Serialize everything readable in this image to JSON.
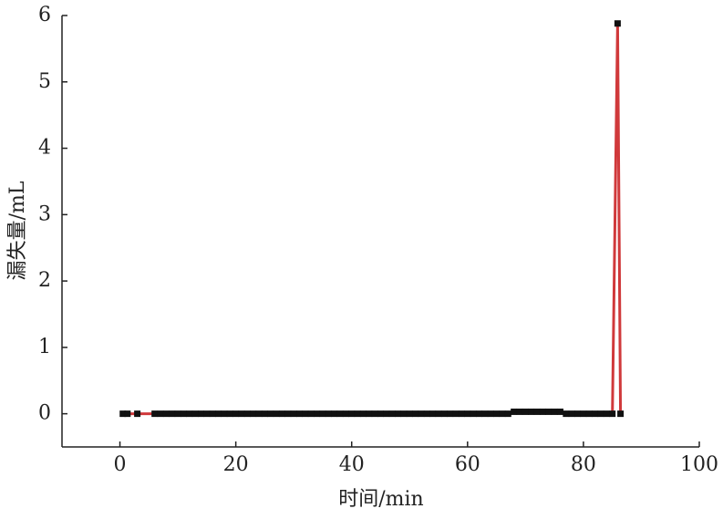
{
  "chart_data": {
    "type": "line",
    "x_label": "时间/min",
    "y_label": "漏失量/mL",
    "x": [
      0.5,
      1.3,
      3,
      6,
      7,
      8,
      9,
      10,
      11,
      12,
      13,
      14,
      15,
      16,
      17,
      18,
      19,
      20,
      21,
      22,
      23,
      24,
      25,
      26,
      27,
      28,
      29,
      30,
      31,
      32,
      33,
      34,
      35,
      36,
      37,
      38,
      39,
      40,
      41,
      42,
      43,
      44,
      45,
      46,
      47,
      48,
      49,
      50,
      51,
      52,
      53,
      54,
      55,
      56,
      57,
      58,
      59,
      60,
      61,
      62,
      63,
      64,
      65,
      66,
      67,
      68,
      69,
      70,
      71,
      72,
      73,
      74,
      75,
      76,
      77,
      78,
      79,
      80,
      81,
      82,
      83,
      84,
      85,
      85.9,
      86.4
    ],
    "values": [
      0,
      0,
      0,
      0,
      0,
      0,
      0,
      0,
      0,
      0,
      0,
      0,
      0,
      0,
      0,
      0,
      0,
      0,
      0,
      0,
      0,
      0,
      0,
      0,
      0,
      0,
      0,
      0,
      0,
      0,
      0,
      0,
      0,
      0,
      0,
      0,
      0,
      0,
      0,
      0,
      0,
      0,
      0,
      0,
      0,
      0,
      0,
      0,
      0,
      0,
      0,
      0,
      0,
      0,
      0,
      0,
      0,
      0,
      0,
      0,
      0,
      0,
      0,
      0,
      0,
      0.03,
      0.03,
      0.03,
      0.03,
      0.03,
      0.03,
      0.03,
      0.03,
      0.03,
      0,
      0,
      0,
      0,
      0,
      0,
      0,
      0,
      0,
      5.88,
      0
    ],
    "color": "#d0393b",
    "marker_color": "#111111",
    "xlim": [
      -10,
      100
    ],
    "xticks": [
      0,
      20,
      40,
      60,
      80,
      100
    ],
    "ylim": [
      -0.5,
      6
    ],
    "yticks": [
      0,
      1,
      2,
      3,
      4,
      5,
      6
    ]
  }
}
